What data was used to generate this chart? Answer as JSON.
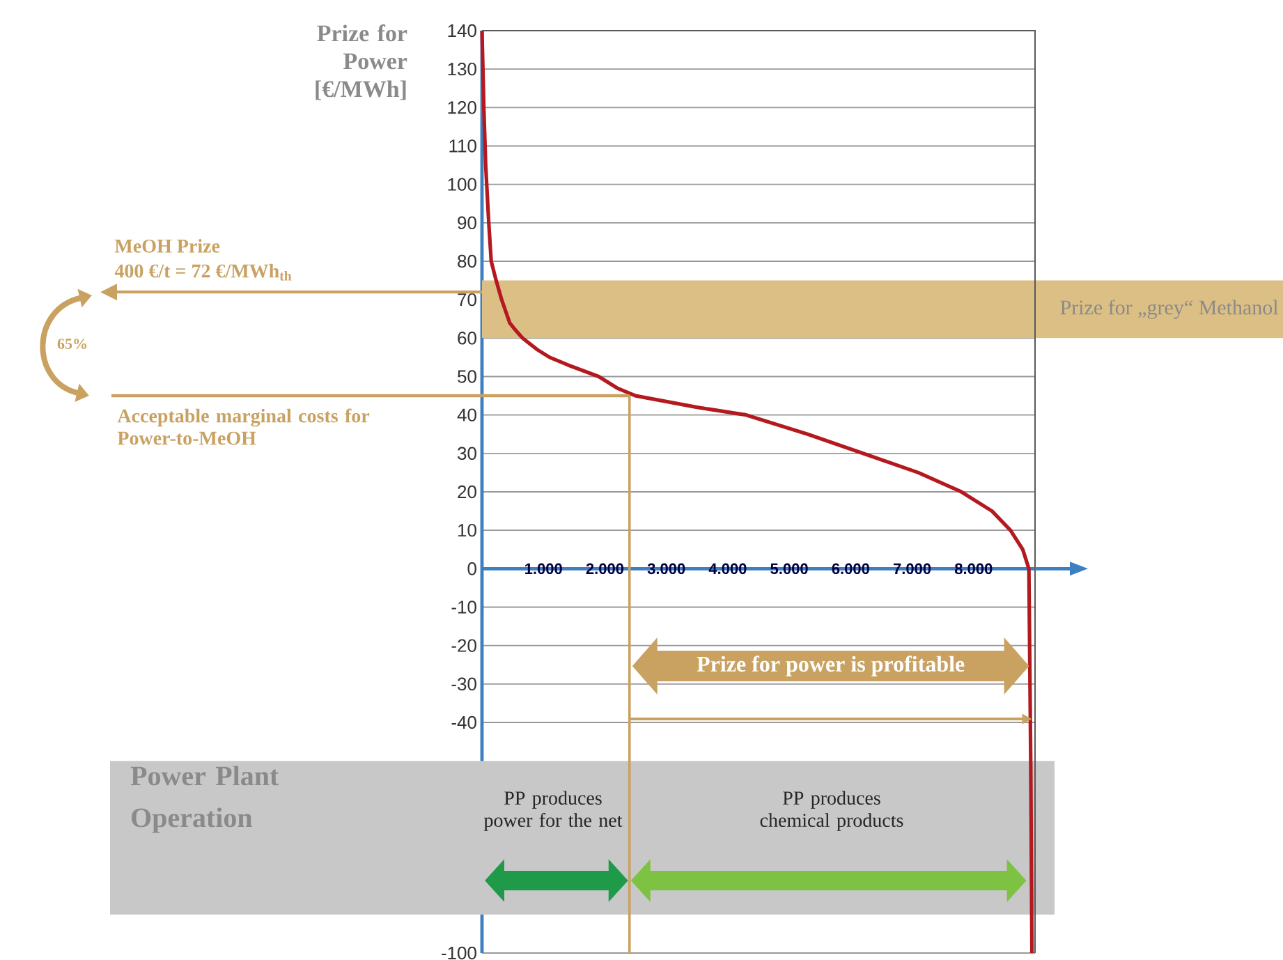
{
  "chart_data": {
    "type": "line",
    "ylabel": "Prize for Power [€/MWh]",
    "x": [
      0,
      30,
      60,
      110,
      150,
      230,
      320,
      450,
      550,
      660,
      900,
      1100,
      1400,
      1900,
      2200,
      2500,
      3500,
      4300,
      5300,
      6200,
      7100,
      7800,
      8300,
      8600,
      8800,
      8900,
      8930,
      8950
    ],
    "series": [
      {
        "color": "#b3191f",
        "values": [
          140,
          120,
          105,
          90,
          80,
          75,
          70,
          64,
          62,
          60,
          57,
          55,
          53,
          50,
          47,
          45,
          42,
          40,
          35,
          30,
          25,
          20,
          15,
          10,
          5,
          0,
          -50,
          -100
        ]
      }
    ],
    "xlim": [
      0,
      9000
    ],
    "ylim": [
      -100,
      140
    ],
    "xticks": [
      {
        "value": 1000,
        "label": "1.000"
      },
      {
        "value": 2000,
        "label": "2.000"
      },
      {
        "value": 3000,
        "label": "3.000"
      },
      {
        "value": 4000,
        "label": "4.000"
      },
      {
        "value": 5000,
        "label": "5.000"
      },
      {
        "value": 6000,
        "label": "6.000"
      },
      {
        "value": 7000,
        "label": "7.000"
      },
      {
        "value": 8000,
        "label": "8.000"
      }
    ],
    "yticks": [
      -100,
      -40,
      -30,
      -20,
      -10,
      0,
      10,
      20,
      30,
      40,
      50,
      60,
      70,
      80,
      90,
      100,
      110,
      120,
      130,
      140
    ],
    "grid": "y",
    "ref_lines": [
      {
        "axis": "y",
        "value": 72,
        "label": "400 €/t = 72 €/MWh$_{th}$",
        "color": "#c9a262"
      },
      {
        "axis": "y",
        "value": 45,
        "label": "Acceptable marginal costs for Power-to-MeOH",
        "color": "#c9a262"
      },
      {
        "axis": "x",
        "value": 2400,
        "color": "#c9a262"
      }
    ],
    "bands": [
      {
        "axis": "y",
        "from": 60,
        "to": 75,
        "label": "Prize for „grey“ Methanol",
        "color": "#dcbf85"
      },
      {
        "axis": "y",
        "from": -90,
        "to": -50,
        "label": "Power Plant Operation",
        "color": "#c8c8c8"
      }
    ],
    "annotations": [
      "MeOH Prize",
      "65%",
      "Prize for power is profitable",
      "PP produces power for the net",
      "PP produces chemical products"
    ]
  }
}
